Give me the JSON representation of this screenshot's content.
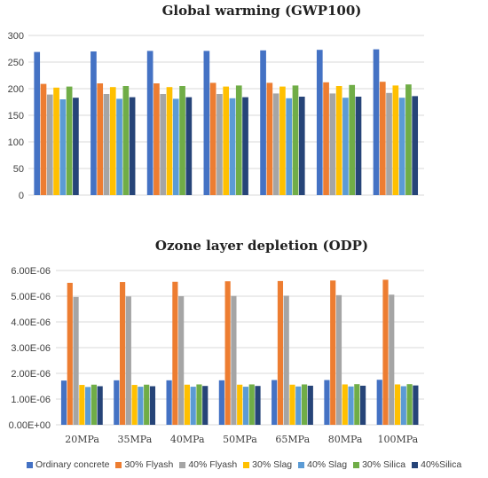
{
  "chart_data": [
    {
      "type": "bar",
      "title": "Global warming (GWP100)",
      "categories": [
        "20MPa",
        "35MPa",
        "40MPa",
        "50MPa",
        "65MPa",
        "80MPa",
        "100MPa"
      ],
      "ylim": [
        0,
        300
      ],
      "yticks": [
        "0",
        "50",
        "100",
        "150",
        "200",
        "250",
        "300"
      ],
      "grid": true,
      "series": [
        {
          "name": "Ordinary concrete",
          "color": "#4472C4",
          "values": [
            269,
            270,
            271,
            271,
            272,
            273,
            274
          ]
        },
        {
          "name": "30% Flyash",
          "color": "#ED7D31",
          "values": [
            209,
            210,
            210,
            211,
            211,
            212,
            213
          ]
        },
        {
          "name": "40% Flyash",
          "color": "#A5A5A5",
          "values": [
            189,
            190,
            190,
            190,
            191,
            191,
            192
          ]
        },
        {
          "name": "30% Slag",
          "color": "#FFC000",
          "values": [
            202,
            203,
            203,
            204,
            204,
            205,
            206
          ]
        },
        {
          "name": "40% Slag",
          "color": "#5B9BD5",
          "values": [
            180,
            181,
            181,
            182,
            182,
            183,
            183
          ]
        },
        {
          "name": "30% Silica",
          "color": "#70AD47",
          "values": [
            204,
            205,
            205,
            206,
            206,
            207,
            208
          ]
        },
        {
          "name": "40%Silica",
          "color": "#264478",
          "values": [
            183,
            184,
            184,
            184,
            185,
            185,
            186
          ]
        }
      ]
    },
    {
      "type": "bar",
      "title": "Ozone layer depletion (ODP)",
      "categories": [
        "20MPa",
        "35MPa",
        "40MPa",
        "50MPa",
        "65MPa",
        "80MPa",
        "100MPa"
      ],
      "ylim": [
        0,
        6e-06
      ],
      "yticks": [
        "0.00E+00",
        "1.00E-06",
        "2.00E-06",
        "3.00E-06",
        "4.00E-06",
        "5.00E-06",
        "6.00E-06"
      ],
      "grid": true,
      "series": [
        {
          "name": "Ordinary concrete",
          "color": "#4472C4",
          "values": [
            1.72e-06,
            1.73e-06,
            1.73e-06,
            1.73e-06,
            1.74e-06,
            1.74e-06,
            1.75e-06
          ]
        },
        {
          "name": "30% Flyash",
          "color": "#ED7D31",
          "values": [
            5.52e-06,
            5.55e-06,
            5.56e-06,
            5.58e-06,
            5.59e-06,
            5.61e-06,
            5.64e-06
          ]
        },
        {
          "name": "40% Flyash",
          "color": "#A5A5A5",
          "values": [
            4.97e-06,
            4.99e-06,
            5e-06,
            5.01e-06,
            5.02e-06,
            5.04e-06,
            5.06e-06
          ]
        },
        {
          "name": "30% Slag",
          "color": "#FFC000",
          "values": [
            1.55e-06,
            1.55e-06,
            1.56e-06,
            1.56e-06,
            1.56e-06,
            1.57e-06,
            1.57e-06
          ]
        },
        {
          "name": "40% Slag",
          "color": "#5B9BD5",
          "values": [
            1.47e-06,
            1.48e-06,
            1.48e-06,
            1.48e-06,
            1.49e-06,
            1.49e-06,
            1.5e-06
          ]
        },
        {
          "name": "30% Silica",
          "color": "#70AD47",
          "values": [
            1.56e-06,
            1.56e-06,
            1.57e-06,
            1.57e-06,
            1.57e-06,
            1.58e-06,
            1.58e-06
          ]
        },
        {
          "name": "40%Silica",
          "color": "#264478",
          "values": [
            1.5e-06,
            1.5e-06,
            1.51e-06,
            1.51e-06,
            1.52e-06,
            1.52e-06,
            1.53e-06
          ]
        }
      ]
    }
  ]
}
